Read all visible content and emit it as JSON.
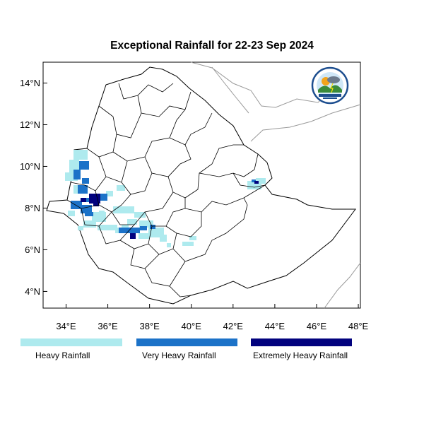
{
  "title": "Exceptional Rainfall for 22-23 Sep 2024",
  "axes": {
    "lat_ticks": [
      {
        "value": 14,
        "label": "14°N"
      },
      {
        "value": 12,
        "label": "12°N"
      },
      {
        "value": 10,
        "label": "10°N"
      },
      {
        "value": 8,
        "label": "8°N"
      },
      {
        "value": 6,
        "label": "6°N"
      },
      {
        "value": 4,
        "label": "4°N"
      }
    ],
    "lon_ticks": [
      {
        "value": 34,
        "label": "34°E"
      },
      {
        "value": 36,
        "label": "36°E"
      },
      {
        "value": 38,
        "label": "38°E"
      },
      {
        "value": 40,
        "label": "40°E"
      },
      {
        "value": 42,
        "label": "42°E"
      },
      {
        "value": 44,
        "label": "44°E"
      },
      {
        "value": 46,
        "label": "46°E"
      },
      {
        "value": 48,
        "label": "48°E"
      }
    ],
    "lon_range": [
      32.9,
      48.1
    ],
    "lat_range": [
      3.2,
      15.0
    ]
  },
  "legend": [
    {
      "label": "Heavy Rainfall",
      "color": "#aeeaee"
    },
    {
      "label": "Very Heavy Rainfall",
      "color": "#1c72c8"
    },
    {
      "label": "Extremely Heavy Rainfall",
      "color": "#02027e"
    }
  ],
  "logo": {
    "icon": "meteorology-institute-logo-icon"
  },
  "colors": {
    "country_fill": "#ffffff",
    "border": "#000000",
    "neighbor_border": "#9a9a9a"
  }
}
